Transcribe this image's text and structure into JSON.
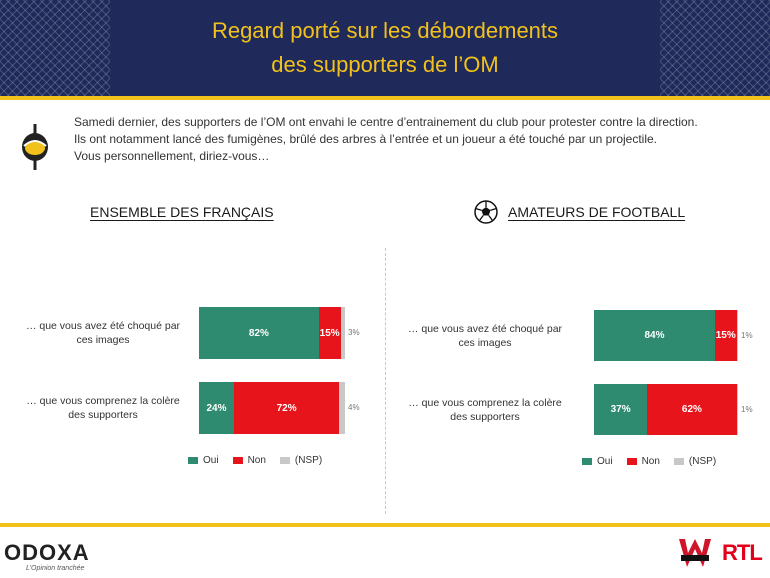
{
  "header": {
    "title_line1": "Regard porté sur les débordements",
    "title_line2": "des supporters de l’OM"
  },
  "intro": {
    "line1": "Samedi dernier, des supporters de l’OM ont envahi le centre d’entrainement du club pour protester contre la direction.",
    "line2": "Ils ont notamment lancé des fumigènes, brûlé des arbres à l’entrée et un joueur a été touché par un projectile.",
    "line3": "Vous personnellement, diriez-vous…"
  },
  "colors": {
    "oui": "#2e8b6f",
    "non": "#e8141c",
    "nsp": "#c8c8c8",
    "header_bg": "#1f2a5a",
    "title": "#f2c11b"
  },
  "chart_data": [
    {
      "type": "bar",
      "title": "ENSEMBLE DES FRANÇAIS",
      "stacked": true,
      "orientation": "horizontal",
      "categories": [
        "… que vous avez été choqué par ces images",
        "… que vous comprenez la colère des supporters"
      ],
      "series": [
        {
          "name": "Oui",
          "values": [
            82,
            24
          ]
        },
        {
          "name": "Non",
          "values": [
            15,
            72
          ]
        },
        {
          "name": "(NSP)",
          "values": [
            3,
            4
          ]
        }
      ],
      "labels": {
        "Oui": [
          "82%",
          "24%"
        ],
        "Non": [
          "15%",
          "72%"
        ],
        "(NSP)": [
          "3%",
          "4%"
        ]
      },
      "legend": "bottom"
    },
    {
      "type": "bar",
      "title": "AMATEURS DE FOOTBALL",
      "stacked": true,
      "orientation": "horizontal",
      "categories": [
        "… que vous avez été choqué par ces images",
        "… que vous comprenez la colère des supporters"
      ],
      "series": [
        {
          "name": "Oui",
          "values": [
            84,
            37
          ]
        },
        {
          "name": "Non",
          "values": [
            15,
            62
          ]
        },
        {
          "name": "(NSP)",
          "values": [
            1,
            1
          ]
        }
      ],
      "labels": {
        "Oui": [
          "84%",
          "37%"
        ],
        "Non": [
          "15%",
          "62%"
        ],
        "(NSP)": [
          "1%",
          "1%"
        ]
      },
      "legend": "bottom"
    }
  ],
  "legend_labels": [
    "Oui",
    "Non",
    "(NSP)"
  ],
  "footer": {
    "brand": "ODOXA",
    "tagline": "L’Opinion tranchée",
    "partner1": "WINAMAX",
    "partner2": "RTL"
  }
}
